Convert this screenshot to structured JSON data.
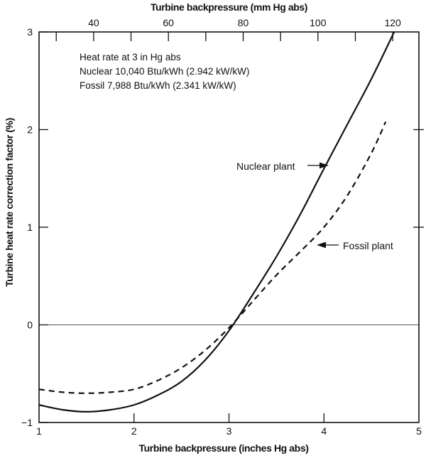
{
  "chart_data": {
    "type": "line",
    "xlabel": "Turbine backpressure (inches Hg abs)",
    "ylabel": "Turbine heat rate correction factor (%)",
    "xlim": [
      1,
      5
    ],
    "ylim": [
      -1,
      3
    ],
    "mm_per_inch": 25.4,
    "zero_line_y": 0,
    "grid": "zero-line-only",
    "top_axis": {
      "label": "Turbine backpressure (mm Hg abs)",
      "minor_ticks_mm": [
        30,
        40,
        50,
        60,
        70,
        80,
        90,
        100,
        110,
        120
      ],
      "tick_labels": [
        {
          "mm": 40,
          "label": "40"
        },
        {
          "mm": 60,
          "label": "60"
        },
        {
          "mm": 80,
          "label": "80"
        },
        {
          "mm": 100,
          "label": "100"
        },
        {
          "mm": 120,
          "label": "120"
        }
      ]
    },
    "x_axis": {
      "inner_ticks": [
        2,
        3,
        4
      ],
      "tick_labels": [
        {
          "value": 1,
          "label": "1"
        },
        {
          "value": 2,
          "label": "2"
        },
        {
          "value": 3,
          "label": "3"
        },
        {
          "value": 4,
          "label": "4"
        },
        {
          "value": 5,
          "label": "5"
        }
      ]
    },
    "y_axis": {
      "tick_labels": [
        {
          "value": 3,
          "label": "3"
        },
        {
          "value": 2,
          "label": "2"
        },
        {
          "value": 1,
          "label": "1"
        },
        {
          "value": 0,
          "label": "0"
        },
        {
          "value": -1,
          "label": "−1"
        }
      ],
      "right_ticks": [
        2,
        1
      ]
    },
    "annotations": [
      "Heat rate at 3 in Hg abs",
      "Nuclear 10,040 Btu/kWh (2.942 kW/kW)",
      "Fossil 7,988 Btu/kWh (2.341 kW/kW)"
    ],
    "series": [
      {
        "name": "Nuclear plant",
        "line_style": "solid",
        "points": [
          [
            1.0,
            -0.82
          ],
          [
            1.25,
            -0.87
          ],
          [
            1.5,
            -0.89
          ],
          [
            1.75,
            -0.87
          ],
          [
            2.0,
            -0.82
          ],
          [
            2.25,
            -0.72
          ],
          [
            2.5,
            -0.58
          ],
          [
            2.75,
            -0.36
          ],
          [
            3.0,
            -0.06
          ],
          [
            3.25,
            0.31
          ],
          [
            3.5,
            0.7
          ],
          [
            3.75,
            1.13
          ],
          [
            4.0,
            1.6
          ],
          [
            4.25,
            2.06
          ],
          [
            4.5,
            2.52
          ],
          [
            4.74,
            3.0
          ]
        ]
      },
      {
        "name": "Fossil plant",
        "line_style": "dashed",
        "points": [
          [
            1.0,
            -0.66
          ],
          [
            1.25,
            -0.69
          ],
          [
            1.5,
            -0.7
          ],
          [
            1.75,
            -0.69
          ],
          [
            2.0,
            -0.66
          ],
          [
            2.25,
            -0.57
          ],
          [
            2.5,
            -0.44
          ],
          [
            2.75,
            -0.26
          ],
          [
            3.0,
            -0.03
          ],
          [
            3.25,
            0.24
          ],
          [
            3.5,
            0.51
          ],
          [
            3.75,
            0.75
          ],
          [
            4.0,
            1.0
          ],
          [
            4.25,
            1.33
          ],
          [
            4.5,
            1.76
          ],
          [
            4.65,
            2.08
          ]
        ]
      }
    ]
  }
}
